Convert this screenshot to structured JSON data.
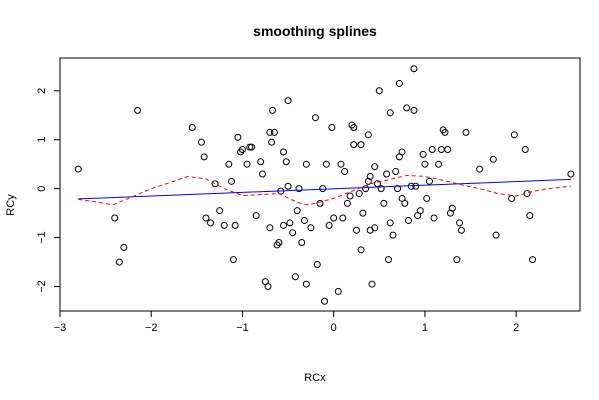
{
  "chart_data": {
    "type": "scatter",
    "title": "smoothing splines",
    "xlabel": "RCx",
    "ylabel": "RCy",
    "xlim": [
      -3,
      2.7
    ],
    "ylim": [
      -2.5,
      2.67
    ],
    "x_ticks": [
      -3,
      -2,
      -1,
      0,
      1,
      2
    ],
    "y_ticks": [
      -2,
      -1,
      0,
      1,
      2
    ],
    "x_tick_labels": [
      "−3",
      "−2",
      "−1",
      "0",
      "1",
      "2"
    ],
    "y_tick_labels": [
      "−2",
      "−1",
      "0",
      "1",
      "2"
    ],
    "grid": false,
    "colors": {
      "points": "#000000",
      "linear_fit": "#0000ff",
      "spline": "#ff0000",
      "frame": "#000000"
    },
    "points": [
      [
        -2.8,
        0.4
      ],
      [
        -2.4,
        -0.6
      ],
      [
        -2.35,
        -1.5
      ],
      [
        -2.3,
        -1.2
      ],
      [
        -2.15,
        1.6
      ],
      [
        -1.55,
        1.25
      ],
      [
        -1.45,
        0.95
      ],
      [
        -1.42,
        0.65
      ],
      [
        -1.4,
        -0.6
      ],
      [
        -1.35,
        -0.7
      ],
      [
        -1.3,
        0.1
      ],
      [
        -1.25,
        -0.45
      ],
      [
        -1.2,
        -0.75
      ],
      [
        -1.15,
        0.5
      ],
      [
        -1.12,
        0.15
      ],
      [
        -1.1,
        -1.45
      ],
      [
        -1.08,
        -0.75
      ],
      [
        -1.05,
        1.05
      ],
      [
        -1.02,
        0.75
      ],
      [
        -1.0,
        0.8
      ],
      [
        -0.95,
        0.5
      ],
      [
        -0.92,
        0.85
      ],
      [
        -0.9,
        0.85
      ],
      [
        -0.85,
        -0.55
      ],
      [
        -0.8,
        0.55
      ],
      [
        -0.78,
        0.3
      ],
      [
        -0.75,
        -1.9
      ],
      [
        -0.72,
        -2.0
      ],
      [
        -0.7,
        1.15
      ],
      [
        -0.7,
        -0.8
      ],
      [
        -0.68,
        0.95
      ],
      [
        -0.67,
        1.6
      ],
      [
        -0.65,
        1.15
      ],
      [
        -0.62,
        -1.15
      ],
      [
        -0.6,
        -1.1
      ],
      [
        -0.58,
        -0.05
      ],
      [
        -0.55,
        0.75
      ],
      [
        -0.55,
        -0.75
      ],
      [
        -0.52,
        0.55
      ],
      [
        -0.5,
        1.8
      ],
      [
        -0.5,
        0.05
      ],
      [
        -0.48,
        -0.7
      ],
      [
        -0.45,
        -0.9
      ],
      [
        -0.42,
        -1.8
      ],
      [
        -0.4,
        -0.45
      ],
      [
        -0.38,
        0.0
      ],
      [
        -0.35,
        -1.1
      ],
      [
        -0.32,
        -0.65
      ],
      [
        -0.3,
        -1.95
      ],
      [
        -0.3,
        0.5
      ],
      [
        -0.25,
        -0.8
      ],
      [
        -0.2,
        1.45
      ],
      [
        -0.18,
        -1.55
      ],
      [
        -0.15,
        -0.3
      ],
      [
        -0.12,
        0.0
      ],
      [
        -0.1,
        -2.3
      ],
      [
        -0.08,
        0.5
      ],
      [
        -0.05,
        -0.75
      ],
      [
        -0.02,
        1.25
      ],
      [
        0.0,
        -0.6
      ],
      [
        0.05,
        -2.1
      ],
      [
        0.08,
        0.5
      ],
      [
        0.1,
        -0.6
      ],
      [
        0.12,
        0.35
      ],
      [
        0.15,
        -0.3
      ],
      [
        0.18,
        -0.15
      ],
      [
        0.2,
        1.3
      ],
      [
        0.22,
        0.9
      ],
      [
        0.22,
        1.25
      ],
      [
        0.25,
        -0.85
      ],
      [
        0.28,
        -0.1
      ],
      [
        0.3,
        0.9
      ],
      [
        0.3,
        -1.25
      ],
      [
        0.32,
        -0.5
      ],
      [
        0.35,
        0.0
      ],
      [
        0.38,
        0.15
      ],
      [
        0.38,
        1.1
      ],
      [
        0.4,
        0.25
      ],
      [
        0.4,
        -0.85
      ],
      [
        0.42,
        -1.95
      ],
      [
        0.45,
        -0.8
      ],
      [
        0.45,
        0.45
      ],
      [
        0.48,
        0.1
      ],
      [
        0.5,
        2.0
      ],
      [
        0.52,
        0.0
      ],
      [
        0.55,
        -0.3
      ],
      [
        0.58,
        0.3
      ],
      [
        0.6,
        -1.45
      ],
      [
        0.62,
        -0.7
      ],
      [
        0.62,
        1.55
      ],
      [
        0.65,
        -0.95
      ],
      [
        0.68,
        0.35
      ],
      [
        0.7,
        0.0
      ],
      [
        0.72,
        2.15
      ],
      [
        0.72,
        0.65
      ],
      [
        0.75,
        -0.2
      ],
      [
        0.75,
        0.75
      ],
      [
        0.78,
        -0.3
      ],
      [
        0.8,
        1.65
      ],
      [
        0.82,
        -0.65
      ],
      [
        0.85,
        0.05
      ],
      [
        0.88,
        1.6
      ],
      [
        0.88,
        2.45
      ],
      [
        0.9,
        0.05
      ],
      [
        0.92,
        -0.55
      ],
      [
        0.95,
        -0.45
      ],
      [
        0.98,
        0.7
      ],
      [
        1.0,
        0.5
      ],
      [
        1.02,
        -0.2
      ],
      [
        1.05,
        0.15
      ],
      [
        1.08,
        0.8
      ],
      [
        1.1,
        -0.6
      ],
      [
        1.15,
        0.5
      ],
      [
        1.18,
        0.8
      ],
      [
        1.2,
        1.2
      ],
      [
        1.22,
        1.15
      ],
      [
        1.25,
        0.8
      ],
      [
        1.28,
        -0.5
      ],
      [
        1.3,
        -0.4
      ],
      [
        1.35,
        -1.45
      ],
      [
        1.38,
        -0.7
      ],
      [
        1.4,
        -0.85
      ],
      [
        1.45,
        1.15
      ],
      [
        1.6,
        0.4
      ],
      [
        1.75,
        0.6
      ],
      [
        1.78,
        -0.95
      ],
      [
        1.95,
        -0.2
      ],
      [
        1.98,
        1.1
      ],
      [
        2.1,
        0.8
      ],
      [
        2.12,
        -0.1
      ],
      [
        2.15,
        -0.55
      ],
      [
        2.18,
        -1.45
      ],
      [
        2.6,
        0.3
      ]
    ],
    "linear_fit": {
      "x": [
        -2.8,
        2.6
      ],
      "y": [
        -0.21,
        0.19
      ]
    },
    "spline": {
      "x": [
        -2.8,
        -2.6,
        -2.42,
        -2.25,
        -2.0,
        -1.8,
        -1.6,
        -1.4,
        -1.2,
        -1.0,
        -0.8,
        -0.6,
        -0.4,
        -0.3,
        -0.2,
        0.0,
        0.2,
        0.4,
        0.6,
        0.8,
        1.0,
        1.2,
        1.4,
        1.6,
        1.8,
        2.0,
        2.2,
        2.4,
        2.6
      ],
      "y": [
        -0.22,
        -0.27,
        -0.33,
        -0.2,
        0.0,
        0.12,
        0.25,
        0.2,
        0.0,
        -0.14,
        -0.12,
        -0.1,
        -0.28,
        -0.33,
        -0.3,
        -0.2,
        -0.05,
        0.1,
        0.18,
        0.27,
        0.25,
        0.17,
        0.08,
        0.0,
        -0.1,
        -0.15,
        -0.05,
        0.01,
        0.05
      ]
    }
  }
}
